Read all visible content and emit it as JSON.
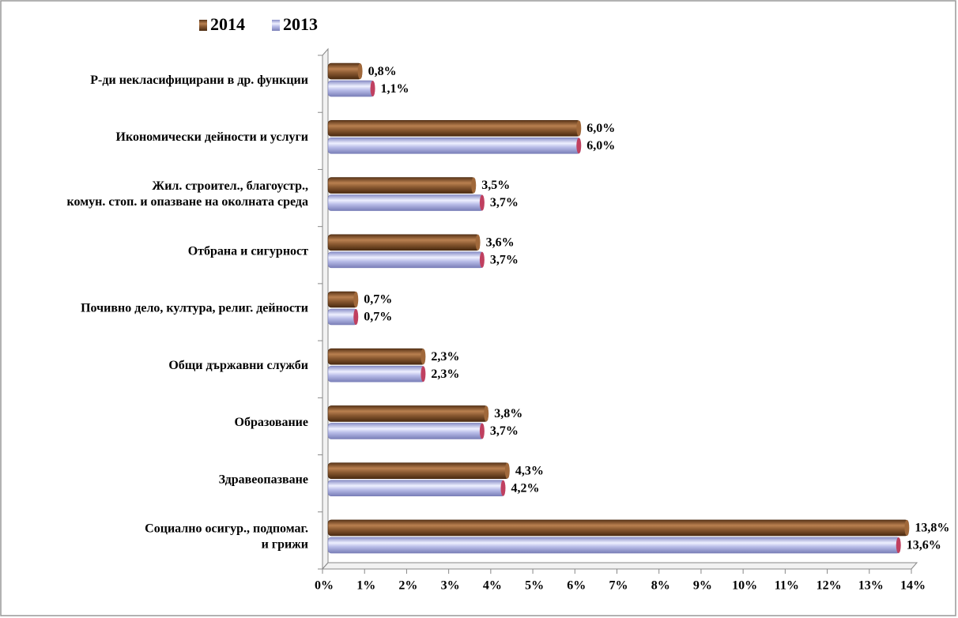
{
  "chart_data": {
    "type": "bar",
    "orientation": "horizontal",
    "categories": [
      [
        "Р-ди некласифицирани в др. функции"
      ],
      [
        "Икономически дейности и услуги"
      ],
      [
        "Жил. строител., благоустр.,",
        "комун. стоп. и опазване на околната среда"
      ],
      [
        "Отбрана и сигурност"
      ],
      [
        "Почивно дело, култура,  религ. дейности"
      ],
      [
        "Общи държавни  служби"
      ],
      [
        "Образование"
      ],
      [
        "Здравеопазване"
      ],
      [
        "Социално осигур., подпомаг.",
        "и грижи"
      ]
    ],
    "series": [
      {
        "name": "2014",
        "color": "#8b5a32",
        "values": [
          0.8,
          6.0,
          3.5,
          3.6,
          0.7,
          2.3,
          3.8,
          4.3,
          13.8
        ],
        "value_labels": [
          "0,8%",
          "6,0%",
          "3,5%",
          "3,6%",
          "0,7%",
          "2,3%",
          "3,8%",
          "4,3%",
          "13,8%"
        ]
      },
      {
        "name": "2013",
        "color": "#b8bce8",
        "values": [
          1.1,
          6.0,
          3.7,
          3.7,
          0.7,
          2.3,
          3.7,
          4.2,
          13.6
        ],
        "value_labels": [
          "1,1%",
          "6,0%",
          "3,7%",
          "3,7%",
          "0,7%",
          "2,3%",
          "3,7%",
          "4,2%",
          "13,6%"
        ]
      }
    ],
    "xlim": [
      0,
      14
    ],
    "xticks": [
      {
        "value": 0,
        "label": "0%"
      },
      {
        "value": 1,
        "label": "1%"
      },
      {
        "value": 2,
        "label": "2%"
      },
      {
        "value": 3,
        "label": "3%"
      },
      {
        "value": 4,
        "label": "4%"
      },
      {
        "value": 5,
        "label": "5%"
      },
      {
        "value": 6,
        "label": "6%"
      },
      {
        "value": 7,
        "label": "7%"
      },
      {
        "value": 8,
        "label": "8%"
      },
      {
        "value": 9,
        "label": "9%"
      },
      {
        "value": 10,
        "label": "10%"
      },
      {
        "value": 11,
        "label": "11%"
      },
      {
        "value": 12,
        "label": "12%"
      },
      {
        "value": 13,
        "label": "13%"
      },
      {
        "value": 14,
        "label": "14%"
      }
    ],
    "legend": "top-left"
  }
}
